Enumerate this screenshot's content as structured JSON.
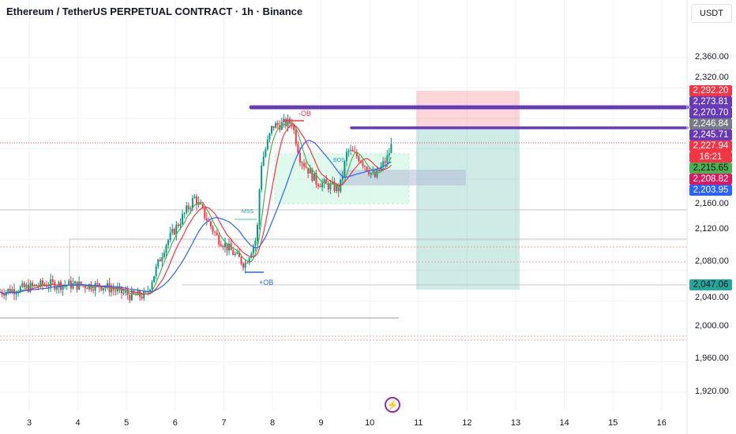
{
  "header": {
    "title": "Ethereum / TetherUS PERPETUAL CONTRACT · 1h · Binance",
    "currency_button": "USDT"
  },
  "price_axis": {
    "ticks": [
      "2,360.00",
      "2,320.00",
      "2,160.00",
      "2,120.00",
      "2,080.00",
      "2,040.00",
      "2,000.00",
      "1,960.00",
      "1,920.00"
    ]
  },
  "price_tags": [
    {
      "value": "2,292.20",
      "color": "#f23645",
      "text_color": "#ffffff"
    },
    {
      "value": "2,273.81",
      "color": "#673ab7",
      "text_color": "#ffffff"
    },
    {
      "value": "2,270.70",
      "color": "#673ab7",
      "text_color": "#ffffff"
    },
    {
      "value": "2,246.84",
      "color": "#787b86",
      "text_color": "#ffffff"
    },
    {
      "value": "2,245.71",
      "color": "#673ab7",
      "text_color": "#ffffff"
    },
    {
      "value": "2,227.94",
      "color": "#f23645",
      "text_color": "#ffffff"
    },
    {
      "value": "16:21",
      "color": "#f23645",
      "text_color": "#ffffff"
    },
    {
      "value": "2,215.65",
      "color": "#4caf50",
      "text_color": "#131722"
    },
    {
      "value": "2,208.82",
      "color": "#d81b60",
      "text_color": "#ffffff"
    },
    {
      "value": "2,203.95",
      "color": "#2962ff",
      "text_color": "#ffffff"
    },
    {
      "value": "2,047.06",
      "color": "#26a69a",
      "text_color": "#131722"
    }
  ],
  "time_axis": {
    "labels": [
      "3",
      "4",
      "5",
      "6",
      "7",
      "8",
      "9",
      "10",
      "11",
      "12",
      "13",
      "14",
      "15",
      "16"
    ]
  },
  "annotations": {
    "bearish_ob": "-OB",
    "bos": "BOS",
    "mss": "MSS",
    "bullish_ob": "+OB"
  },
  "chart_data": {
    "type": "candlestick",
    "timeframe": "1h",
    "price_path": [
      [
        2.4,
        2052
      ],
      [
        3.37,
        2062
      ],
      [
        4.5,
        2060
      ],
      [
        5.08,
        2047
      ],
      [
        5.4,
        2047
      ],
      [
        5.8,
        2114
      ],
      [
        6.4,
        2176
      ],
      [
        6.86,
        2124
      ],
      [
        7.43,
        2088
      ],
      [
        7.68,
        2124
      ],
      [
        7.76,
        2218
      ],
      [
        8.0,
        2270
      ],
      [
        8.4,
        2275
      ],
      [
        8.57,
        2228
      ],
      [
        8.9,
        2197
      ],
      [
        9.38,
        2187
      ],
      [
        9.54,
        2238
      ],
      [
        9.79,
        2228
      ],
      [
        10.1,
        2202
      ],
      [
        10.36,
        2228
      ],
      [
        10.47,
        2249
      ]
    ],
    "current_price": 2227.94,
    "colors": {
      "up": "#089981",
      "down": "#f23645",
      "ma_fast": "#4caf50",
      "ma_mid": "#f23645",
      "ma_slow": "#2962ff",
      "levels": "#673ab7"
    }
  },
  "icons": {
    "logo": "lightning-icon"
  }
}
